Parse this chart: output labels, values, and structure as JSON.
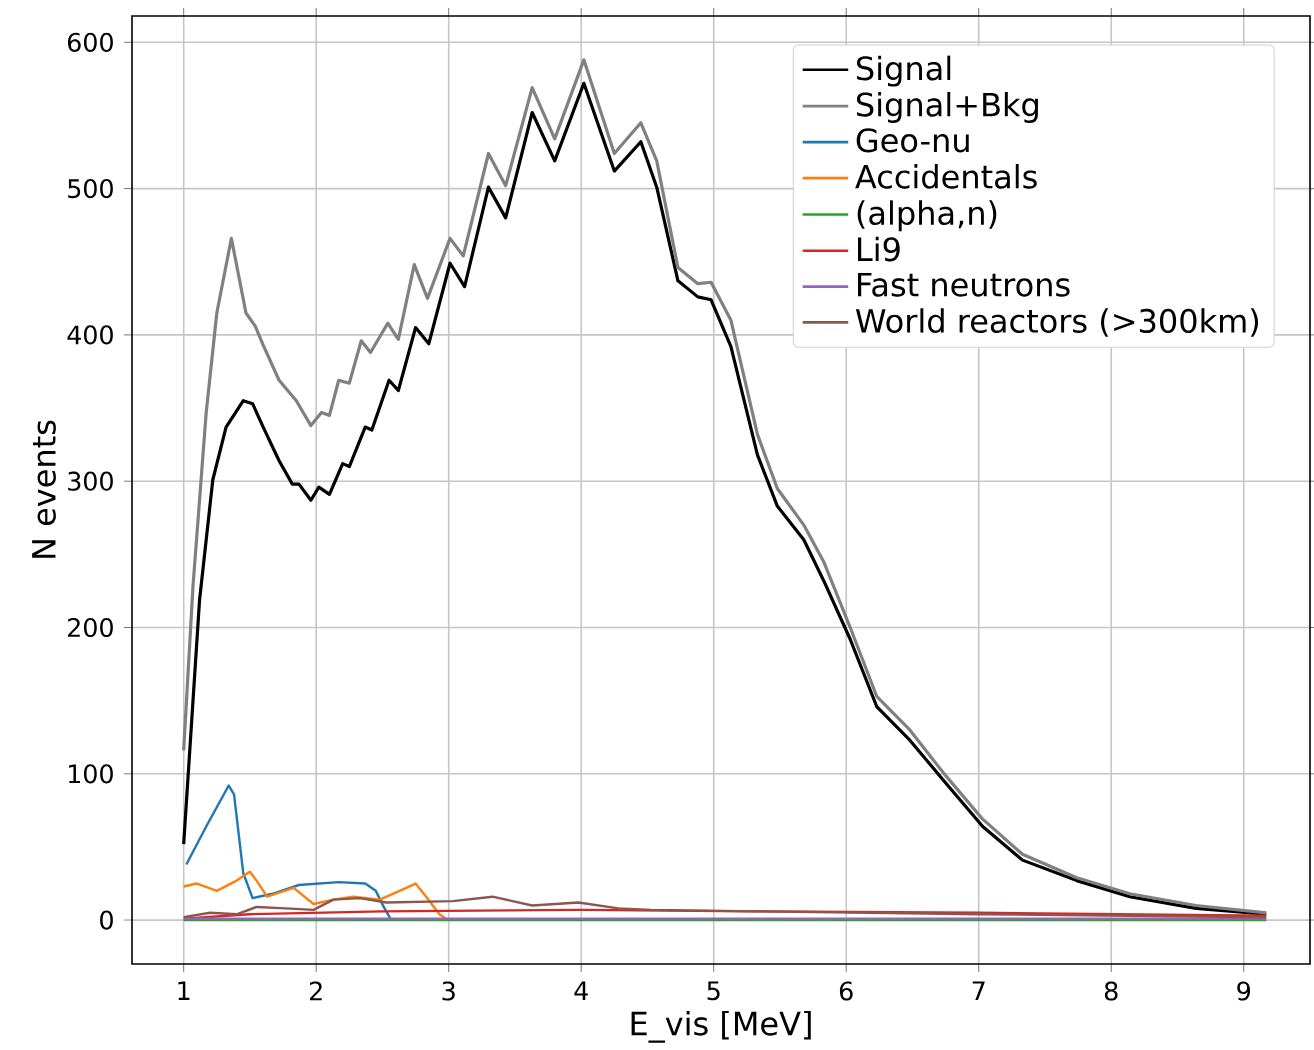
{
  "chart_data": {
    "type": "line",
    "xlabel": "E_vis [MeV]",
    "ylabel": "N events",
    "xlim": [
      0.61,
      9.5
    ],
    "ylim": [
      -30,
      618
    ],
    "xticks": [
      1,
      2,
      3,
      4,
      5,
      6,
      7,
      8,
      9
    ],
    "yticks": [
      0,
      100,
      200,
      300,
      400,
      500,
      600
    ],
    "grid": true,
    "legend": "top right",
    "marker": "none",
    "line_style": "solid",
    "series": [
      {
        "name": "Signal",
        "color": "#000000",
        "x": [
          1.0,
          1.12,
          1.22,
          1.32,
          1.45,
          1.52,
          1.6,
          1.72,
          1.82,
          1.87,
          1.96,
          2.02,
          2.1,
          2.2,
          2.25,
          2.37,
          2.42,
          2.55,
          2.62,
          2.75,
          2.85,
          3.01,
          3.12,
          3.3,
          3.43,
          3.63,
          3.8,
          4.02,
          4.25,
          4.45,
          4.57,
          4.73,
          4.88,
          4.98,
          5.13,
          5.33,
          5.48,
          5.68,
          5.83,
          6.03,
          6.23,
          6.48,
          6.73,
          7.03,
          7.33,
          7.74,
          8.14,
          8.64,
          9.17
        ],
        "values": [
          52,
          219,
          301,
          337,
          355,
          353,
          337,
          314,
          298,
          298,
          287,
          296,
          291,
          312,
          310,
          337,
          335,
          369,
          362,
          405,
          394,
          449,
          433,
          501,
          480,
          552,
          519,
          572,
          512,
          532,
          501,
          437,
          426,
          424,
          392,
          318,
          283,
          260,
          232,
          192,
          146,
          123,
          96,
          64,
          41,
          27,
          16,
          8,
          4
        ]
      },
      {
        "name": "Signal+Bkg",
        "color": "#808080",
        "x": [
          1.0,
          1.07,
          1.17,
          1.25,
          1.36,
          1.47,
          1.54,
          1.6,
          1.72,
          1.85,
          1.96,
          2.04,
          2.1,
          2.17,
          2.25,
          2.34,
          2.41,
          2.54,
          2.62,
          2.74,
          2.84,
          3.01,
          3.11,
          3.3,
          3.43,
          3.63,
          3.8,
          4.02,
          4.25,
          4.45,
          4.57,
          4.73,
          4.88,
          4.98,
          5.13,
          5.33,
          5.48,
          5.68,
          5.83,
          6.03,
          6.23,
          6.48,
          6.73,
          7.03,
          7.33,
          7.74,
          8.14,
          8.64,
          9.17
        ],
        "values": [
          116,
          228,
          347,
          415,
          466,
          415,
          406,
          393,
          369,
          355,
          338,
          347,
          345,
          369,
          367,
          396,
          388,
          408,
          397,
          448,
          425,
          466,
          454,
          524,
          502,
          569,
          534,
          588,
          524,
          545,
          519,
          446,
          435,
          436,
          410,
          332,
          295,
          270,
          245,
          200,
          153,
          130,
          101,
          69,
          45,
          29,
          18,
          10,
          5
        ]
      },
      {
        "name": "Geo-nu",
        "color": "#1f77b4",
        "x": [
          1.02,
          1.17,
          1.34,
          1.38,
          1.45,
          1.52,
          1.67,
          1.87,
          2.17,
          2.37,
          2.45,
          2.51,
          2.56
        ],
        "values": [
          38,
          64,
          92,
          86,
          32,
          15,
          18,
          24,
          26,
          25,
          20,
          9,
          1
        ]
      },
      {
        "name": "Accidentals",
        "color": "#ff7f0e",
        "x": [
          1.0,
          1.1,
          1.25,
          1.4,
          1.5,
          1.55,
          1.63,
          1.83,
          1.98,
          2.13,
          2.28,
          2.48,
          2.63,
          2.75,
          2.83,
          2.93,
          2.98
        ],
        "values": [
          23,
          25,
          20,
          27,
          33,
          27,
          16,
          22,
          11,
          14,
          16,
          14,
          20,
          25,
          16,
          4,
          1
        ]
      },
      {
        "name": "(alpha,n)",
        "color": "#2ca02c",
        "x": [
          1.0,
          5.0,
          9.17
        ],
        "values": [
          0,
          0,
          0
        ]
      },
      {
        "name": "Li9",
        "color": "#d62728",
        "x": [
          1.0,
          1.5,
          2.5,
          4.0,
          5.3,
          7.0,
          9.17
        ],
        "values": [
          1,
          4,
          6,
          7,
          6,
          5,
          3
        ]
      },
      {
        "name": "Fast neutrons",
        "color": "#9467bd",
        "x": [
          1.0,
          5.0,
          9.17
        ],
        "values": [
          1,
          1,
          1
        ]
      },
      {
        "name": "World reactors (>300km)",
        "color": "#8c564b",
        "x": [
          1.0,
          1.2,
          1.4,
          1.55,
          1.77,
          1.98,
          2.13,
          2.33,
          2.53,
          3.03,
          3.33,
          3.63,
          3.98,
          4.28,
          4.53,
          5.33,
          7.0,
          9.17
        ],
        "values": [
          2,
          5,
          4,
          9,
          8,
          7,
          14,
          15,
          12,
          13,
          16,
          10,
          12,
          8,
          7,
          6,
          4,
          2
        ]
      }
    ]
  }
}
